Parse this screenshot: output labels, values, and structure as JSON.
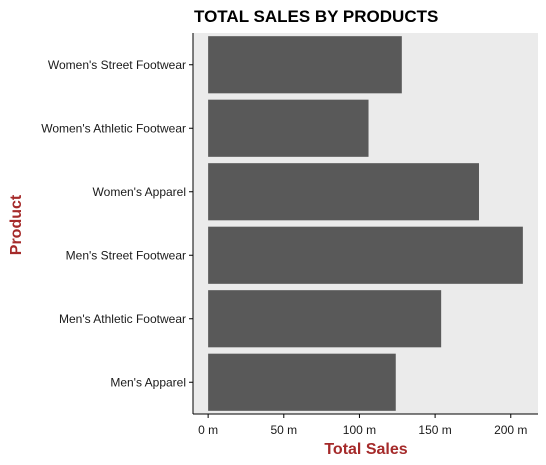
{
  "chart_data": {
    "type": "bar",
    "orientation": "horizontal",
    "title": "TOTAL SALES BY PRODUCTS",
    "xlabel": "Total Sales",
    "ylabel": "Product",
    "categories": [
      "Men's Apparel",
      "Men's Athletic Footwear",
      "Men's Street Footwear",
      "Women's Apparel",
      "Women's Athletic Footwear",
      "Women's Street Footwear"
    ],
    "values": [
      124,
      154,
      208,
      179,
      106,
      128
    ],
    "value_unit": "m",
    "xlim": [
      -10,
      218
    ],
    "x_ticks": [
      0,
      50,
      100,
      150,
      200
    ],
    "x_tick_labels": [
      "0 m",
      "50 m",
      "100 m",
      "150 m",
      "200 m"
    ],
    "grid": false,
    "legend": "none",
    "colors": {
      "bar": "#595959",
      "panel_background": "#ebebeb",
      "axis_title": "#a52a2a",
      "axis_line": "#000000"
    }
  }
}
